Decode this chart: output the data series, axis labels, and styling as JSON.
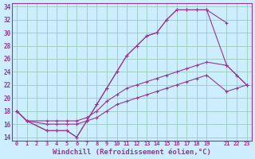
{
  "xlabel": "Windchill (Refroidissement éolien,°C)",
  "bg_color": "#cceeff",
  "grid_color": "#99ccbb",
  "line_color": "#993399",
  "xlim": [
    -0.5,
    23.5
  ],
  "ylim": [
    13.5,
    34.5
  ],
  "xticks": [
    0,
    1,
    2,
    3,
    4,
    5,
    6,
    7,
    8,
    9,
    10,
    11,
    12,
    13,
    14,
    15,
    16,
    17,
    18,
    19,
    21,
    22,
    23
  ],
  "yticks": [
    14,
    16,
    18,
    20,
    22,
    24,
    26,
    28,
    30,
    32,
    34
  ],
  "line1_x": [
    0,
    1,
    3,
    4,
    5,
    6,
    7,
    8,
    9,
    10,
    11,
    12,
    13,
    14,
    15,
    16,
    17,
    18,
    19,
    21
  ],
  "line1_y": [
    18,
    16.5,
    15,
    15,
    15,
    14,
    16.5,
    19,
    21.5,
    24,
    26.5,
    28,
    29.5,
    30,
    32,
    33.5,
    33.5,
    33.5,
    33.5,
    31.5
  ],
  "line2_x": [
    0,
    1,
    3,
    4,
    5,
    6,
    7,
    8,
    9,
    10,
    11,
    12,
    13,
    14,
    15,
    16,
    17,
    18,
    19,
    21,
    22,
    23
  ],
  "line2_y": [
    18,
    16.5,
    15,
    15,
    15,
    14,
    16.5,
    19,
    21.5,
    24,
    26.5,
    28,
    29.5,
    30,
    32,
    33.5,
    33.5,
    33.5,
    33.5,
    25,
    23.5,
    22
  ],
  "line3_x": [
    0,
    1,
    3,
    4,
    5,
    6,
    7,
    8,
    9,
    10,
    11,
    12,
    13,
    14,
    15,
    16,
    17,
    18,
    19,
    21,
    22,
    23
  ],
  "line3_y": [
    18,
    16.5,
    16.5,
    16.5,
    16.5,
    16.5,
    17,
    18,
    19.5,
    20.5,
    21.5,
    22,
    22.5,
    23,
    23.5,
    24,
    24.5,
    25,
    25.5,
    25,
    23.5,
    22
  ],
  "line4_x": [
    0,
    1,
    3,
    4,
    5,
    6,
    7,
    8,
    9,
    10,
    11,
    12,
    13,
    14,
    15,
    16,
    17,
    18,
    19,
    21,
    22,
    23
  ],
  "line4_y": [
    18,
    16.5,
    16,
    16,
    16,
    16,
    16.5,
    17,
    18,
    19,
    19.5,
    20,
    20.5,
    21,
    21.5,
    22,
    22.5,
    23,
    23.5,
    21,
    21.5,
    22
  ]
}
